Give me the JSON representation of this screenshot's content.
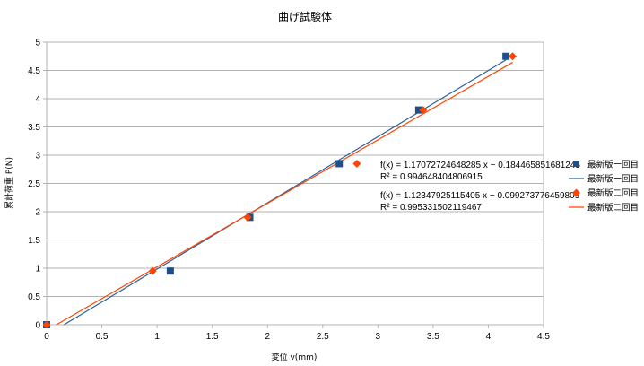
{
  "chart_data": {
    "type": "scatter",
    "title": "曲げ試験体",
    "xlabel": "変位 v(mm)",
    "ylabel": "累計荷重 P(N)",
    "xlim": [
      0,
      4.5
    ],
    "ylim": [
      0,
      5
    ],
    "xticks": [
      "0",
      "0.5",
      "1",
      "1.5",
      "2",
      "2.5",
      "3",
      "3.5",
      "4",
      "4.5"
    ],
    "yticks": [
      "0",
      "0.5",
      "1",
      "1.5",
      "2",
      "2.5",
      "3",
      "3.5",
      "4",
      "4.5",
      "5"
    ],
    "grid": "horizontal",
    "legend_position": "right",
    "series": [
      {
        "name": "最新版一回目",
        "marker": "square",
        "color": "#1f4e8c",
        "points": [
          [
            0,
            0
          ],
          [
            1.12,
            0.95
          ],
          [
            1.84,
            1.9
          ],
          [
            2.65,
            2.85
          ],
          [
            3.37,
            3.8
          ],
          [
            4.16,
            4.75
          ]
        ],
        "trendline": {
          "name": "最新版一回目",
          "slope": 1.17072724648285,
          "intercept": -0.184465851681245,
          "equation": "f(x) = 1.17072724648285 x − 0.184465851681245",
          "r2": "R² = 0.994648404806915",
          "color": "#2a6099"
        }
      },
      {
        "name": "最新版二回目",
        "marker": "diamond",
        "color": "#ff4500",
        "points": [
          [
            0,
            0
          ],
          [
            0.96,
            0.95
          ],
          [
            1.82,
            1.9
          ],
          [
            2.81,
            2.85
          ],
          [
            3.41,
            3.8
          ],
          [
            4.22,
            4.75
          ]
        ],
        "trendline": {
          "name": "最新版二回目",
          "slope": 1.12347925115405,
          "intercept": -0.099273776459809,
          "equation": "f(x) = 1.12347925115405 x − 0.099273776459809",
          "r2": "R² = 0.995331502119467",
          "color": "#ff4500"
        }
      }
    ]
  }
}
